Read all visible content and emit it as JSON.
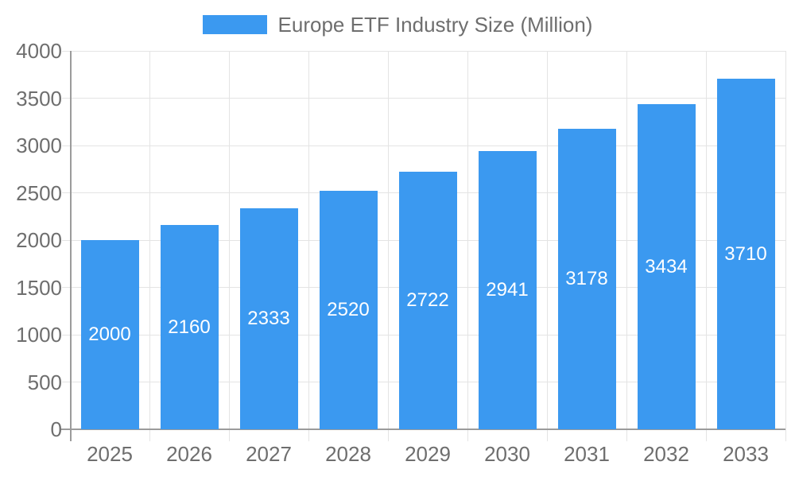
{
  "legend": {
    "label": "Europe ETF Industry Size (Million)"
  },
  "colors": {
    "bar": "#3B99F0",
    "grid": "#E4E4E4",
    "axis": "#9B9B9B",
    "tick_label": "#6E6E6E",
    "bar_label": "#FFFFFF",
    "background": "#FFFFFF"
  },
  "chart_data": {
    "type": "bar",
    "title": "Europe ETF Industry Size (Million)",
    "series_name": "Europe ETF Industry Size (Million)",
    "categories": [
      "2025",
      "2026",
      "2027",
      "2028",
      "2029",
      "2030",
      "2031",
      "2032",
      "2033"
    ],
    "values": [
      2000,
      2160,
      2333,
      2520,
      2722,
      2941,
      3178,
      3434,
      3710
    ],
    "data_labels": [
      "2000",
      "2160",
      "2333",
      "2520",
      "2722",
      "2941",
      "3178",
      "3434",
      "3710"
    ],
    "xlabel": "",
    "ylabel": "",
    "ylim": [
      0,
      4000
    ],
    "y_tick_step": 500,
    "y_ticks": [
      "0",
      "500",
      "1000",
      "1500",
      "2000",
      "2500",
      "3000",
      "3500",
      "4000"
    ],
    "grid": true,
    "legend_position": "top",
    "bar_labels_visible": true,
    "bar_label_position": "middle"
  }
}
